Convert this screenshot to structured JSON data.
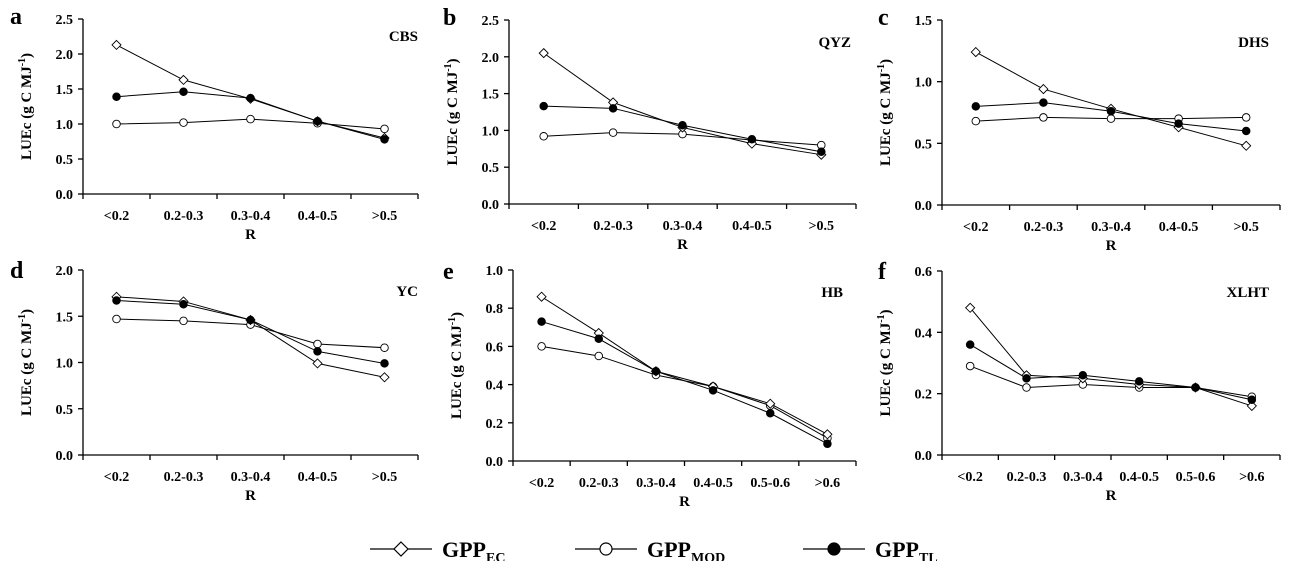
{
  "chart_data": [
    {
      "type": "line",
      "panel": "a",
      "title": "CBS",
      "xlabel": "R",
      "ylabel": "LUEc (g C MJ-1)",
      "ylim": [
        0,
        2.5
      ],
      "yticks": [
        "0.0",
        "0.5",
        "1.0",
        "1.5",
        "2.0",
        "2.5"
      ],
      "categories": [
        "<0.2",
        "0.2-0.3",
        "0.3-0.4",
        "0.4-0.5",
        ">0.5"
      ],
      "series": [
        {
          "key": "ec",
          "values": [
            2.13,
            1.63,
            1.36,
            1.04,
            0.8
          ]
        },
        {
          "key": "mod",
          "values": [
            1.0,
            1.02,
            1.07,
            1.01,
            0.93
          ]
        },
        {
          "key": "tl",
          "values": [
            1.39,
            1.46,
            1.37,
            1.04,
            0.78
          ]
        }
      ]
    },
    {
      "type": "line",
      "panel": "b",
      "title": "QYZ",
      "xlabel": "R",
      "ylabel": "LUEc (g C MJ-1)",
      "ylim": [
        0,
        2.5
      ],
      "yticks": [
        "0.0",
        "0.5",
        "1.0",
        "1.5",
        "2.0",
        "2.5"
      ],
      "categories": [
        "<0.2",
        "0.2-0.3",
        "0.3-0.4",
        "0.4-0.5",
        ">0.5"
      ],
      "series": [
        {
          "key": "ec",
          "values": [
            2.05,
            1.38,
            1.04,
            0.82,
            0.67
          ]
        },
        {
          "key": "mod",
          "values": [
            0.92,
            0.97,
            0.95,
            0.87,
            0.8
          ]
        },
        {
          "key": "tl",
          "values": [
            1.33,
            1.3,
            1.07,
            0.88,
            0.71
          ]
        }
      ]
    },
    {
      "type": "line",
      "panel": "c",
      "title": "DHS",
      "xlabel": "R",
      "ylabel": "LUEc (g C MJ-1)",
      "ylim": [
        0,
        1.5
      ],
      "yticks": [
        "0.0",
        "0.5",
        "1.0",
        "1.5"
      ],
      "categories": [
        "<0.2",
        "0.2-0.3",
        "0.3-0.4",
        "0.4-0.5",
        ">0.5"
      ],
      "series": [
        {
          "key": "ec",
          "values": [
            1.24,
            0.94,
            0.78,
            0.63,
            0.48
          ]
        },
        {
          "key": "mod",
          "values": [
            0.68,
            0.71,
            0.7,
            0.7,
            0.71
          ]
        },
        {
          "key": "tl",
          "values": [
            0.8,
            0.83,
            0.76,
            0.66,
            0.6
          ]
        }
      ]
    },
    {
      "type": "line",
      "panel": "d",
      "title": "YC",
      "xlabel": "R",
      "ylabel": "LUEc (g C MJ-1)",
      "ylim": [
        0,
        2.0
      ],
      "yticks": [
        "0.0",
        "0.5",
        "1.0",
        "1.5",
        "2.0"
      ],
      "categories": [
        "<0.2",
        "0.2-0.3",
        "0.3-0.4",
        "0.4-0.5",
        ">0.5"
      ],
      "series": [
        {
          "key": "ec",
          "values": [
            1.71,
            1.66,
            1.46,
            0.99,
            0.84
          ]
        },
        {
          "key": "mod",
          "values": [
            1.47,
            1.45,
            1.41,
            1.2,
            1.16
          ]
        },
        {
          "key": "tl",
          "values": [
            1.67,
            1.63,
            1.46,
            1.12,
            0.99
          ]
        }
      ]
    },
    {
      "type": "line",
      "panel": "e",
      "title": "HB",
      "xlabel": "R",
      "ylabel": "LUEc (g C MJ-1)",
      "ylim": [
        0,
        1.0
      ],
      "yticks": [
        "0.0",
        "0.2",
        "0.4",
        "0.6",
        "0.8",
        "1.0"
      ],
      "categories": [
        "<0.2",
        "0.2-0.3",
        "0.3-0.4",
        "0.4-0.5",
        "0.5-0.6",
        ">0.6"
      ],
      "series": [
        {
          "key": "ec",
          "values": [
            0.86,
            0.67,
            0.47,
            0.39,
            0.3,
            0.14
          ]
        },
        {
          "key": "mod",
          "values": [
            0.6,
            0.55,
            0.45,
            0.39,
            0.29,
            0.12
          ]
        },
        {
          "key": "tl",
          "values": [
            0.73,
            0.64,
            0.47,
            0.37,
            0.25,
            0.09
          ]
        }
      ]
    },
    {
      "type": "line",
      "panel": "f",
      "title": "XLHT",
      "xlabel": "R",
      "ylabel": "LUEc (g C MJ-1)",
      "ylim": [
        0,
        0.6
      ],
      "yticks": [
        "0.0",
        "0.2",
        "0.4",
        "0.6"
      ],
      "categories": [
        "<0.2",
        "0.2-0.3",
        "0.3-0.4",
        "0.4-0.5",
        "0.5-0.6",
        ">0.6"
      ],
      "series": [
        {
          "key": "ec",
          "values": [
            0.48,
            0.26,
            0.25,
            0.23,
            0.22,
            0.16
          ]
        },
        {
          "key": "mod",
          "values": [
            0.29,
            0.22,
            0.23,
            0.22,
            0.22,
            0.19
          ]
        },
        {
          "key": "tl",
          "values": [
            0.36,
            0.25,
            0.26,
            0.24,
            0.22,
            0.18
          ]
        }
      ]
    }
  ],
  "legend": [
    {
      "key": "ec",
      "main": "GPP",
      "sub": "EC",
      "marker": "open-diamond"
    },
    {
      "key": "mod",
      "main": "GPP",
      "sub": "MOD",
      "marker": "open-circle"
    },
    {
      "key": "tl",
      "main": "GPP",
      "sub": "TL",
      "marker": "filled-circle"
    }
  ]
}
